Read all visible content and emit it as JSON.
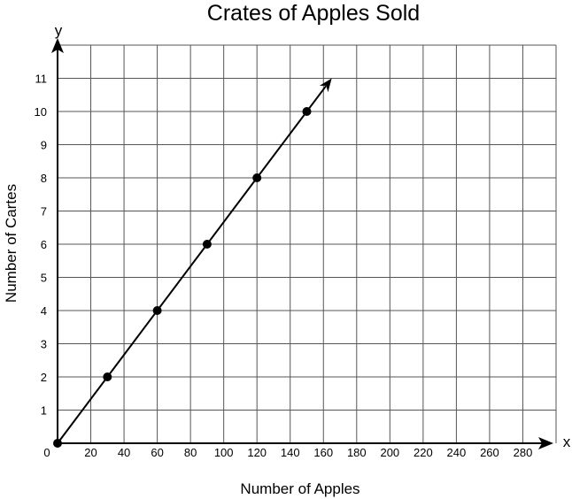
{
  "chart_data": {
    "type": "line",
    "title": "Crates of Apples Sold",
    "xlabel": "Number of Apples",
    "ylabel": "Number of Cartes",
    "x_axis_letter": "x",
    "y_axis_letter": "y",
    "origin_label": "0",
    "xlim": [
      0,
      300
    ],
    "ylim": [
      0,
      12
    ],
    "x_ticks": [
      20,
      40,
      60,
      80,
      100,
      120,
      140,
      160,
      180,
      200,
      220,
      240,
      260,
      280
    ],
    "y_ticks": [
      1,
      2,
      3,
      4,
      5,
      6,
      7,
      8,
      9,
      10,
      11
    ],
    "x_grid_step": 20,
    "y_grid_step": 1,
    "grid": true,
    "series": [
      {
        "x": [
          0,
          30,
          60,
          90,
          120,
          150
        ],
        "y": [
          0,
          2,
          4,
          6,
          8,
          10
        ],
        "line_end": [
          165,
          11
        ],
        "arrow_at_end": true
      }
    ],
    "colors": {
      "line": "#000000",
      "grid": "#555555",
      "points": "#000000"
    }
  }
}
